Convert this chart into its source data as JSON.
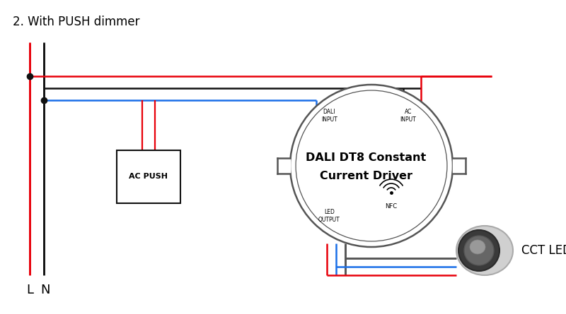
{
  "title": "2. With PUSH dimmer",
  "bg_color": "#ffffff",
  "title_fontsize": 12,
  "red_color": "#e8000a",
  "black_color": "#111111",
  "blue_color": "#1a6fe8",
  "gray_color": "#777777",
  "dark_gray": "#555555",
  "wire_lw": 1.8,
  "driver_label1": "DALI DT8 Constant",
  "driver_label2": "Current Driver",
  "dali_input_label": "DALI\nINPUT",
  "ac_input_label": "AC\nINPUT",
  "led_output_label": "LED\nOUTPUT",
  "nfc_label": "NFC",
  "push_box_label": "AC PUSH",
  "L_label": "L",
  "N_label": "N",
  "CCT_label": "CCT LED"
}
